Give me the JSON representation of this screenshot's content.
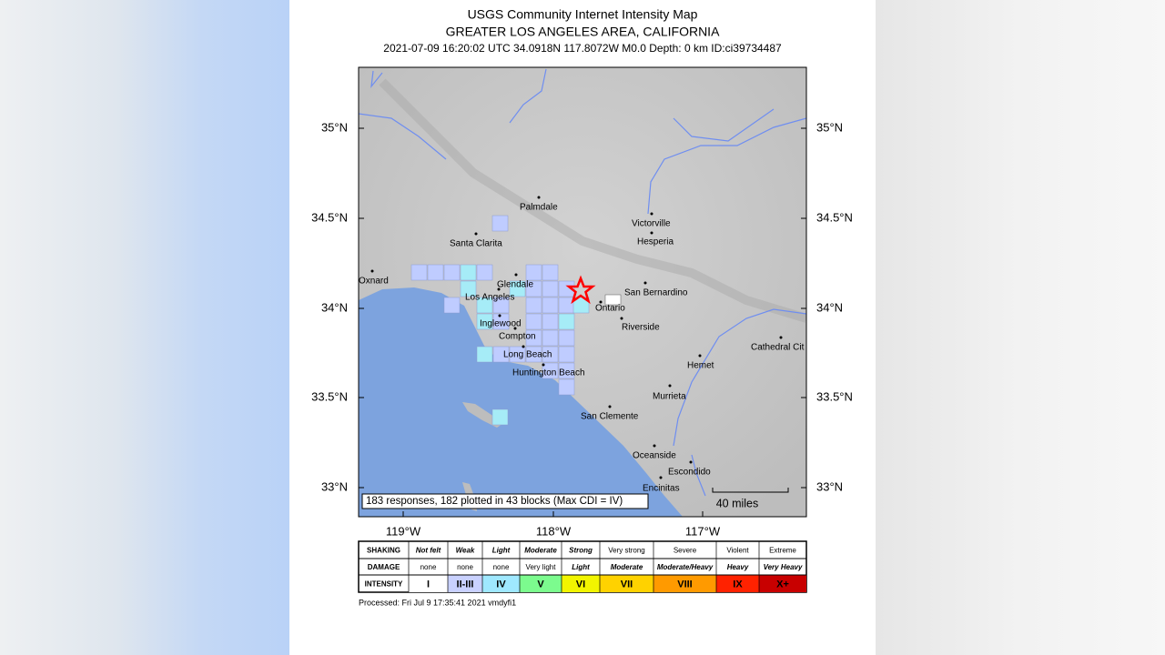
{
  "header": {
    "title": "USGS Community Internet Intensity Map",
    "region": "GREATER LOS ANGELES AREA, CALIFORNIA",
    "event": "2021-07-09 16:20:02 UTC 34.0918N 117.8072W M0.0 Depth: 0 km ID:ci39734487"
  },
  "map": {
    "lat_labels": [
      "35°N",
      "34.5°N",
      "34°N",
      "33.5°N",
      "33°N"
    ],
    "lon_labels": [
      "119°W",
      "118°W",
      "117°W"
    ],
    "places": [
      "Palmdale",
      "Santa Clarita",
      "Victorville",
      "Hesperia",
      "Oxnard",
      "Glendale",
      "Los Angeles",
      "San Bernardino",
      "Ontario",
      "Riverside",
      "Inglewood",
      "Compton",
      "Cathedral Cit",
      "Long Beach",
      "Hemet",
      "Huntington Beach",
      "Murrieta",
      "San Clemente",
      "Oceanside",
      "Escondido",
      "Encinitas"
    ],
    "summary": "183 responses, 182 plotted in 43 blocks (Max CDI = IV)",
    "scale": "40 miles"
  },
  "legend": {
    "rows": [
      [
        "SHAKING",
        "Not felt",
        "Weak",
        "Light",
        "Moderate",
        "Strong",
        "Very strong",
        "Severe",
        "Violent",
        "Extreme"
      ],
      [
        "DAMAGE",
        "none",
        "none",
        "none",
        "Very light",
        "Light",
        "Moderate",
        "Moderate/Heavy",
        "Heavy",
        "Very Heavy"
      ],
      [
        "INTENSITY",
        "I",
        "II-III",
        "IV",
        "V",
        "VI",
        "VII",
        "VIII",
        "IX",
        "X+"
      ]
    ]
  },
  "footer": "Processed: Fri Jul  9 17:35:41 2021 vmdyfi1"
}
